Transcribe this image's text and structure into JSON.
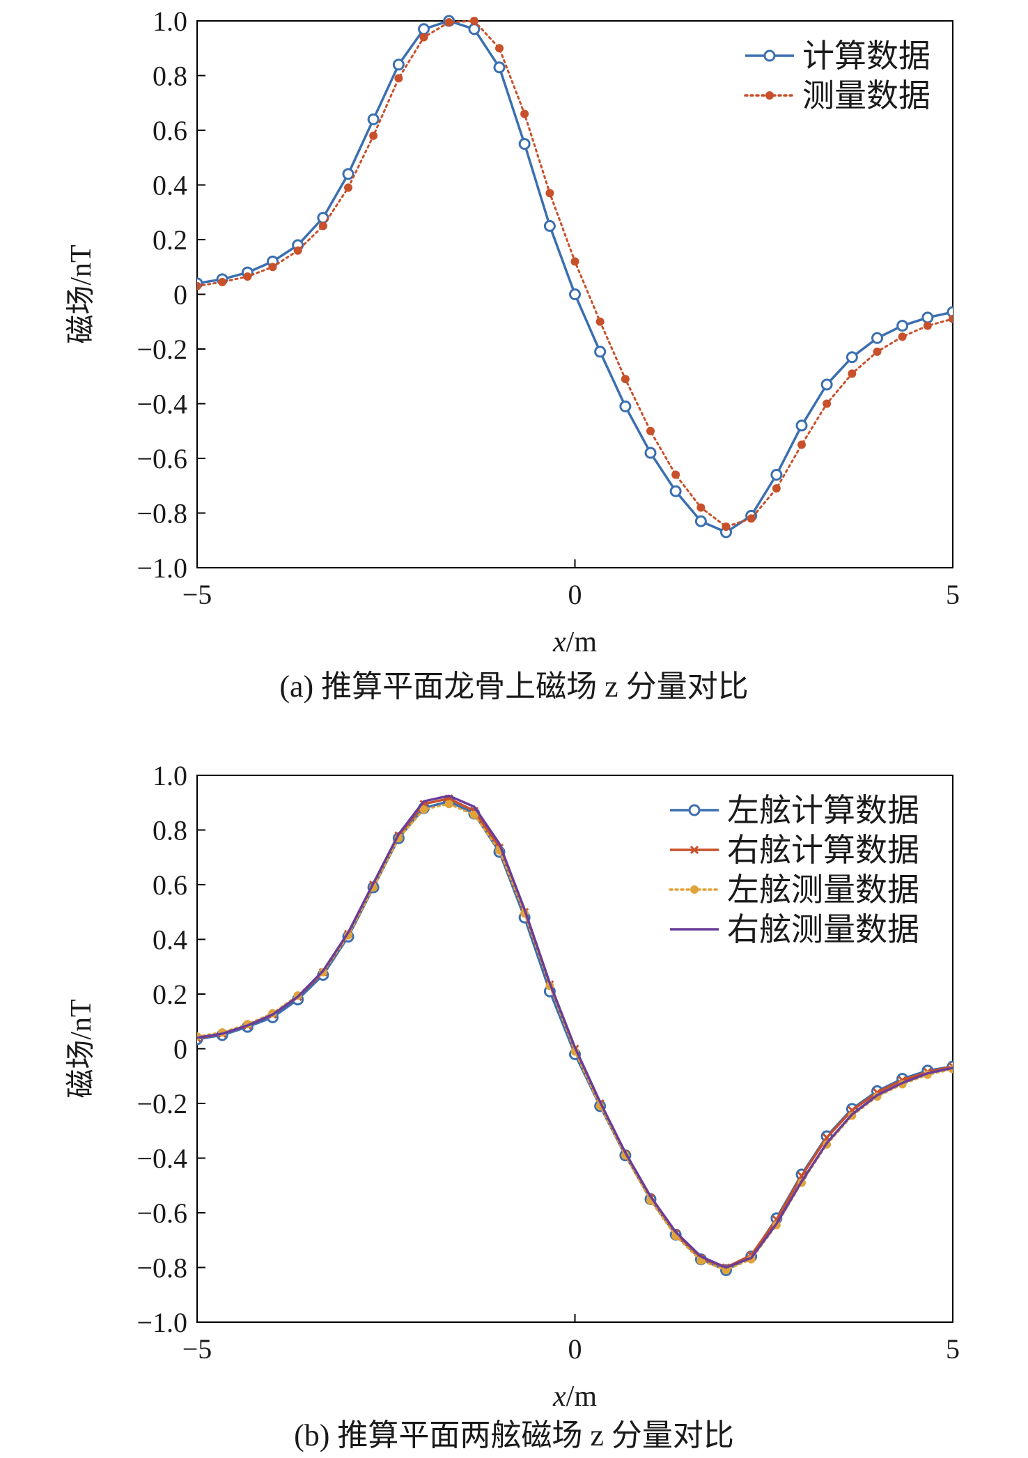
{
  "figure": {
    "panels": [
      {
        "caption_prefix": "(a)",
        "caption": "推算平面龙骨上磁场 z 分量对比"
      },
      {
        "caption_prefix": "(b)",
        "caption": "推算平面两舷磁场 z 分量对比"
      }
    ]
  },
  "chart_data": [
    {
      "type": "line",
      "title": "",
      "xlabel": "x/m",
      "ylabel": "磁场/nT",
      "xlim": [
        -5,
        5
      ],
      "ylim": [
        -1.0,
        1.0
      ],
      "x_ticks": [
        -5,
        0,
        5
      ],
      "x_tick_labels": [
        "−5",
        "0",
        "5"
      ],
      "y_ticks": [
        1.0,
        0.8,
        0.6,
        0.4,
        0.2,
        0,
        -0.2,
        -0.4,
        -0.6,
        -0.8,
        -1.0
      ],
      "y_tick_labels": [
        "1.0",
        "0.8",
        "0.6",
        "0.4",
        "0.2",
        "0",
        "−0.2",
        "−0.4",
        "−0.6",
        "−0.8",
        "−1.0"
      ],
      "grid": false,
      "legend_position": "top-right",
      "x": [
        -5.0,
        -4.667,
        -4.333,
        -4.0,
        -3.667,
        -3.333,
        -3.0,
        -2.667,
        -2.333,
        -2.0,
        -1.667,
        -1.333,
        -1.0,
        -0.667,
        -0.333,
        0.0,
        0.333,
        0.667,
        1.0,
        1.333,
        1.667,
        2.0,
        2.333,
        2.667,
        3.0,
        3.333,
        3.667,
        4.0,
        4.333,
        4.667,
        5.0
      ],
      "series": [
        {
          "name": "计算数据",
          "color": "#3b6fb0",
          "style": "solid-open-circle",
          "values": [
            0.04,
            0.055,
            0.08,
            0.12,
            0.18,
            0.28,
            0.44,
            0.64,
            0.84,
            0.97,
            1.0,
            0.97,
            0.83,
            0.55,
            0.25,
            0.0,
            -0.21,
            -0.41,
            -0.58,
            -0.72,
            -0.83,
            -0.87,
            -0.81,
            -0.66,
            -0.48,
            -0.33,
            -0.23,
            -0.16,
            -0.115,
            -0.085,
            -0.065
          ]
        },
        {
          "name": "测量数据",
          "color": "#c8502a",
          "style": "dotted-filled-dot",
          "values": [
            0.03,
            0.045,
            0.065,
            0.1,
            0.16,
            0.25,
            0.39,
            0.58,
            0.79,
            0.94,
            0.995,
            1.0,
            0.9,
            0.66,
            0.37,
            0.12,
            -0.1,
            -0.31,
            -0.5,
            -0.66,
            -0.78,
            -0.85,
            -0.82,
            -0.71,
            -0.55,
            -0.4,
            -0.29,
            -0.21,
            -0.155,
            -0.115,
            -0.09
          ]
        }
      ]
    },
    {
      "type": "line",
      "title": "",
      "xlabel": "x/m",
      "ylabel": "磁场/nT",
      "xlim": [
        -5,
        5
      ],
      "ylim": [
        -1.0,
        1.0
      ],
      "x_ticks": [
        -5,
        0,
        5
      ],
      "x_tick_labels": [
        "−5",
        "0",
        "5"
      ],
      "y_ticks": [
        1.0,
        0.8,
        0.6,
        0.4,
        0.2,
        0,
        -0.2,
        -0.4,
        -0.6,
        -0.8,
        -1.0
      ],
      "y_tick_labels": [
        "1.0",
        "0.8",
        "0.6",
        "0.4",
        "0.2",
        "0",
        "−0.2",
        "−0.4",
        "−0.6",
        "−0.8",
        "−1.0"
      ],
      "grid": false,
      "legend_position": "top-right",
      "x": [
        -5.0,
        -4.667,
        -4.333,
        -4.0,
        -3.667,
        -3.333,
        -3.0,
        -2.667,
        -2.333,
        -2.0,
        -1.667,
        -1.333,
        -1.0,
        -0.667,
        -0.333,
        0.0,
        0.333,
        0.667,
        1.0,
        1.333,
        1.667,
        2.0,
        2.333,
        2.667,
        3.0,
        3.333,
        3.667,
        4.0,
        4.333,
        4.667,
        5.0
      ],
      "series": [
        {
          "name": "左舷计算数据",
          "color": "#3b6fb0",
          "style": "solid-open-circle",
          "values": [
            0.035,
            0.05,
            0.08,
            0.115,
            0.18,
            0.27,
            0.41,
            0.59,
            0.77,
            0.88,
            0.905,
            0.86,
            0.72,
            0.48,
            0.21,
            -0.02,
            -0.21,
            -0.39,
            -0.55,
            -0.68,
            -0.77,
            -0.81,
            -0.76,
            -0.62,
            -0.46,
            -0.32,
            -0.22,
            -0.155,
            -0.11,
            -0.08,
            -0.065
          ]
        },
        {
          "name": "右舷计算数据",
          "color": "#c8502a",
          "style": "solid-x",
          "values": [
            0.038,
            0.055,
            0.085,
            0.125,
            0.19,
            0.28,
            0.42,
            0.6,
            0.78,
            0.895,
            0.915,
            0.87,
            0.735,
            0.5,
            0.235,
            0.0,
            -0.2,
            -0.385,
            -0.545,
            -0.675,
            -0.765,
            -0.8,
            -0.755,
            -0.625,
            -0.465,
            -0.325,
            -0.225,
            -0.16,
            -0.115,
            -0.085,
            -0.065
          ]
        },
        {
          "name": "左舷测量数据",
          "color": "#e0a33a",
          "style": "dotted-filled-dot",
          "values": [
            0.045,
            0.06,
            0.09,
            0.13,
            0.195,
            0.28,
            0.415,
            0.59,
            0.77,
            0.875,
            0.895,
            0.855,
            0.725,
            0.495,
            0.23,
            -0.01,
            -0.21,
            -0.39,
            -0.555,
            -0.685,
            -0.775,
            -0.81,
            -0.77,
            -0.645,
            -0.49,
            -0.35,
            -0.245,
            -0.175,
            -0.13,
            -0.095,
            -0.075
          ]
        },
        {
          "name": "右舷测量数据",
          "color": "#6a3d9a",
          "style": "solid",
          "values": [
            0.04,
            0.055,
            0.085,
            0.125,
            0.19,
            0.285,
            0.425,
            0.605,
            0.785,
            0.905,
            0.925,
            0.885,
            0.75,
            0.51,
            0.24,
            0.005,
            -0.195,
            -0.38,
            -0.54,
            -0.67,
            -0.76,
            -0.8,
            -0.765,
            -0.64,
            -0.485,
            -0.345,
            -0.24,
            -0.17,
            -0.125,
            -0.09,
            -0.07
          ]
        }
      ]
    }
  ]
}
